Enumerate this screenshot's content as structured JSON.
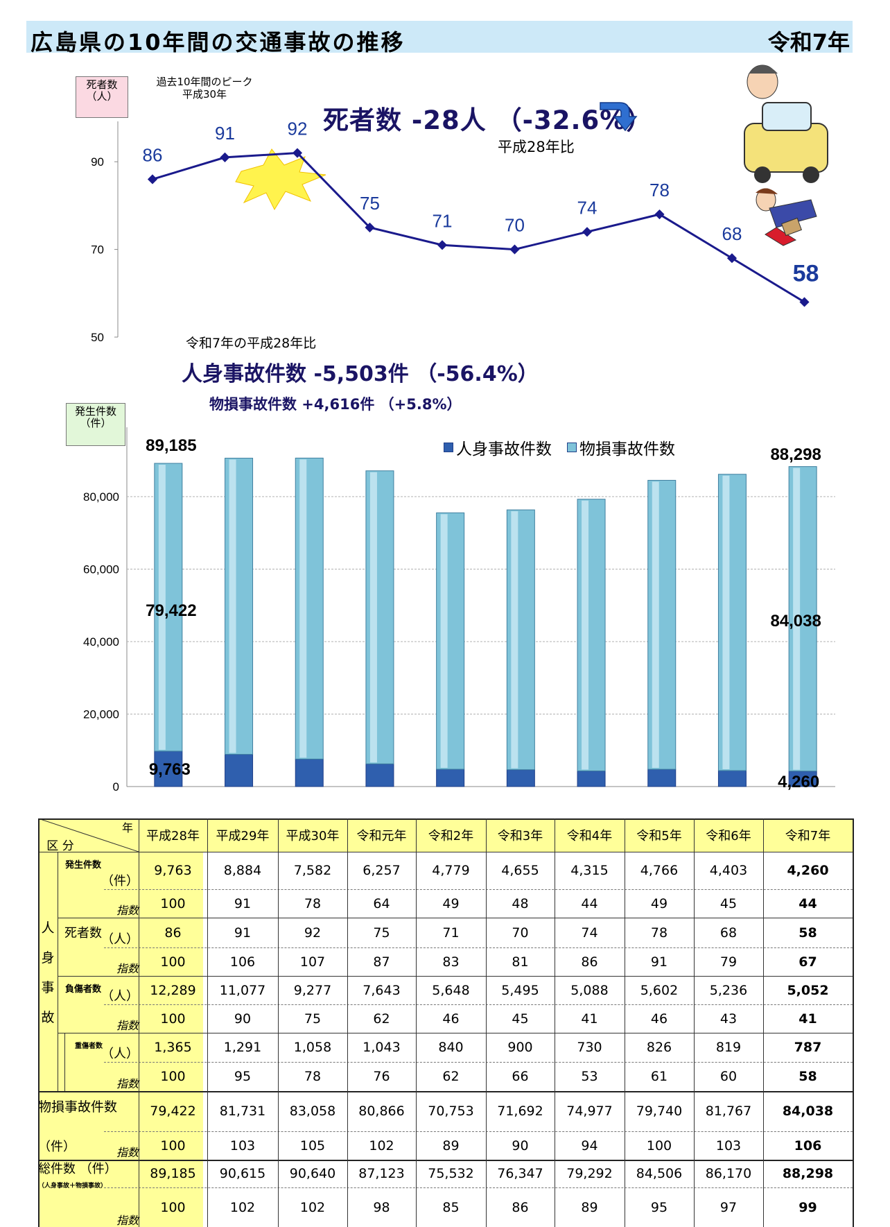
{
  "title": "広島県の10年間の交通事故の推移",
  "year_label": "令和7年",
  "death_axis_label": [
    "死者数",
    "（人）"
  ],
  "peak_note": [
    "過去10年間のピーク",
    "平成30年"
  ],
  "death_summary": "死者数  -28人 （-32.6%）",
  "death_base": "平成28年比",
  "comparison_note": "令和7年の平成28年比",
  "injury_summary": "人身事故件数  -5,503件 （-56.4%）",
  "property_summary": "物損事故件数   +4,616件  （+5.8%）",
  "accident_axis_label": [
    "発生件数",
    "（件）"
  ],
  "legend": [
    "人身事故件数",
    "物損事故件数"
  ],
  "chart_data": [
    {
      "type": "line",
      "ylabel": "死者数（人）",
      "yticks": [
        50,
        70,
        90
      ],
      "ylim": [
        50,
        100
      ],
      "categories": [
        "平成28年",
        "平成29年",
        "平成30年",
        "令和元年",
        "令和2年",
        "令和3年",
        "令和4年",
        "令和5年",
        "令和6年",
        "令和7年"
      ],
      "values": [
        86,
        91,
        92,
        75,
        71,
        70,
        74,
        78,
        68,
        58
      ],
      "data_labels": [
        "86",
        "91",
        "92",
        "75",
        "71",
        "70",
        "74",
        "78",
        "68",
        "58"
      ],
      "color": "#1a1a8c"
    },
    {
      "type": "bar",
      "ylabel": "発生件数（件）",
      "yticks": [
        "0",
        "20,000",
        "40,000",
        "60,000",
        "80,000"
      ],
      "ylim": [
        0,
        90000
      ],
      "categories": [
        "平成28年",
        "平成29年",
        "平成30年",
        "令和元年",
        "令和2年",
        "令和3年",
        "令和4年",
        "令和5年",
        "令和6年",
        "令和7年"
      ],
      "series": [
        {
          "name": "人身事故件数",
          "values": [
            9763,
            8884,
            7582,
            6257,
            4779,
            4655,
            4315,
            4766,
            4403,
            4260
          ],
          "color": "#2f5fae"
        },
        {
          "name": "物損事故件数",
          "values": [
            79422,
            81731,
            83058,
            80866,
            70753,
            71692,
            74977,
            79740,
            81767,
            84038
          ],
          "color": "#7fc3d9"
        }
      ],
      "totals": [
        89185,
        90615,
        90640,
        87123,
        75532,
        76347,
        79292,
        84506,
        86170,
        88298
      ],
      "data_labels": {
        "first_total": "89,185",
        "first_property": "79,422",
        "first_injury": "9,763",
        "last_total": "88,298",
        "last_property": "84,038",
        "last_injury": "4,260"
      }
    }
  ],
  "table": {
    "corner_year": "年",
    "corner_category": "区 分",
    "years": [
      "平成28年",
      "平成29年",
      "平成30年",
      "令和元年",
      "令和2年",
      "令和3年",
      "令和4年",
      "令和5年",
      "令和6年",
      "令和7年"
    ],
    "group_label": [
      "人",
      "身",
      "事",
      "故"
    ],
    "rows": [
      {
        "label": "発生件数",
        "unit": "（件）",
        "values": [
          "9,763",
          "8,884",
          "7,582",
          "6,257",
          "4,779",
          "4,655",
          "4,315",
          "4,766",
          "4,403",
          "4,260"
        ]
      },
      {
        "label": "",
        "unit": "指数",
        "values": [
          "100",
          "91",
          "78",
          "64",
          "49",
          "48",
          "44",
          "49",
          "45",
          "44"
        ]
      },
      {
        "label": "死者数",
        "unit": "（人）",
        "values": [
          "86",
          "91",
          "92",
          "75",
          "71",
          "70",
          "74",
          "78",
          "68",
          "58"
        ]
      },
      {
        "label": "",
        "unit": "指数",
        "values": [
          "100",
          "106",
          "107",
          "87",
          "83",
          "81",
          "86",
          "91",
          "79",
          "67"
        ]
      },
      {
        "label": "負傷者数",
        "unit": "（人）",
        "values": [
          "12,289",
          "11,077",
          "9,277",
          "7,643",
          "5,648",
          "5,495",
          "5,088",
          "5,602",
          "5,236",
          "5,052"
        ]
      },
      {
        "label": "",
        "unit": "指数",
        "values": [
          "100",
          "90",
          "75",
          "62",
          "46",
          "45",
          "41",
          "46",
          "43",
          "41"
        ]
      },
      {
        "label": "重傷者数",
        "unit": "（人）",
        "values": [
          "1,365",
          "1,291",
          "1,058",
          "1,043",
          "840",
          "900",
          "730",
          "826",
          "819",
          "787"
        ]
      },
      {
        "label": "",
        "unit": "指数",
        "values": [
          "100",
          "95",
          "78",
          "76",
          "62",
          "66",
          "53",
          "61",
          "60",
          "58"
        ]
      },
      {
        "label": "物損事故件数",
        "unit": "",
        "values": [
          "79,422",
          "81,731",
          "83,058",
          "80,866",
          "70,753",
          "71,692",
          "74,977",
          "79,740",
          "81,767",
          "84,038"
        ]
      },
      {
        "label": "（件）",
        "unit": "指数",
        "values": [
          "100",
          "103",
          "105",
          "102",
          "89",
          "90",
          "94",
          "100",
          "103",
          "106"
        ]
      },
      {
        "label": "総件数 （件）",
        "sublabel": "（人身事故＋物損事故）",
        "unit": "",
        "values": [
          "89,185",
          "90,615",
          "90,640",
          "87,123",
          "75,532",
          "76,347",
          "79,292",
          "84,506",
          "86,170",
          "88,298"
        ]
      },
      {
        "label": "",
        "unit": "指数",
        "values": [
          "100",
          "102",
          "102",
          "98",
          "85",
          "86",
          "89",
          "95",
          "97",
          "99"
        ]
      }
    ]
  },
  "colors": {
    "title_bg": "#cde9f8",
    "navy": "#1a1464",
    "table_yellow": "#ffff99"
  }
}
